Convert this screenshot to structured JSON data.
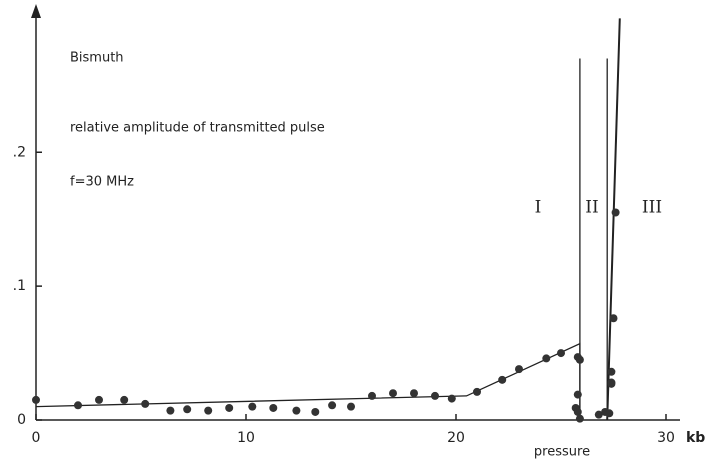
{
  "chart_data": {
    "type": "scatter",
    "annotations": [
      "Bismuth",
      "relative amplitude of transmitted pulse",
      "f=30 MHz"
    ],
    "phase_labels": [
      "I",
      "II",
      "III"
    ],
    "xlabel": "pressure",
    "xunit": "kb",
    "x": [
      0,
      2,
      3,
      4.2,
      5.2,
      6.4,
      7.2,
      8.2,
      9.2,
      10.3,
      11.3,
      12.4,
      13.3,
      14.1,
      15,
      16,
      17,
      18,
      19,
      19.8,
      21,
      22.2,
      23,
      24.3,
      25,
      25.8,
      25.9,
      25.8,
      25.7,
      25.8,
      25.9,
      26.8,
      27.1,
      27.3,
      27.4,
      27.4,
      27.4,
      27.5,
      27.6
    ],
    "values": [
      0.015,
      0.011,
      0.015,
      0.015,
      0.012,
      0.007,
      0.008,
      0.007,
      0.009,
      0.01,
      0.009,
      0.007,
      0.006,
      0.011,
      0.01,
      0.018,
      0.02,
      0.02,
      0.018,
      0.016,
      0.021,
      0.03,
      0.038,
      0.046,
      0.05,
      0.047,
      0.045,
      0.019,
      0.009,
      0.006,
      0.001,
      0.004,
      0.006,
      0.005,
      0.027,
      0.036,
      0.028,
      0.076,
      0.155
    ],
    "color": "#333333",
    "lines": [
      {
        "x": [
          0,
          20.5,
          25.9,
          25.9
        ],
        "y": [
          0.01,
          0.018,
          0.057,
          0
        ]
      },
      {
        "x": [
          25.9,
          25.9
        ],
        "y": [
          0,
          0.27
        ]
      },
      {
        "x": [
          27.2,
          27.2
        ],
        "y": [
          0,
          0.27
        ]
      },
      {
        "x": [
          27.2,
          27.8
        ],
        "y": [
          0,
          0.3
        ]
      }
    ],
    "xlim": [
      0,
      32
    ],
    "ylim": [
      0,
      0.31
    ],
    "xticks": [
      0,
      10,
      20,
      30
    ],
    "yticks": [
      0,
      {
        "value": 0.1,
        "label": ".1"
      },
      {
        "value": 0.2,
        "label": ".2"
      }
    ]
  }
}
